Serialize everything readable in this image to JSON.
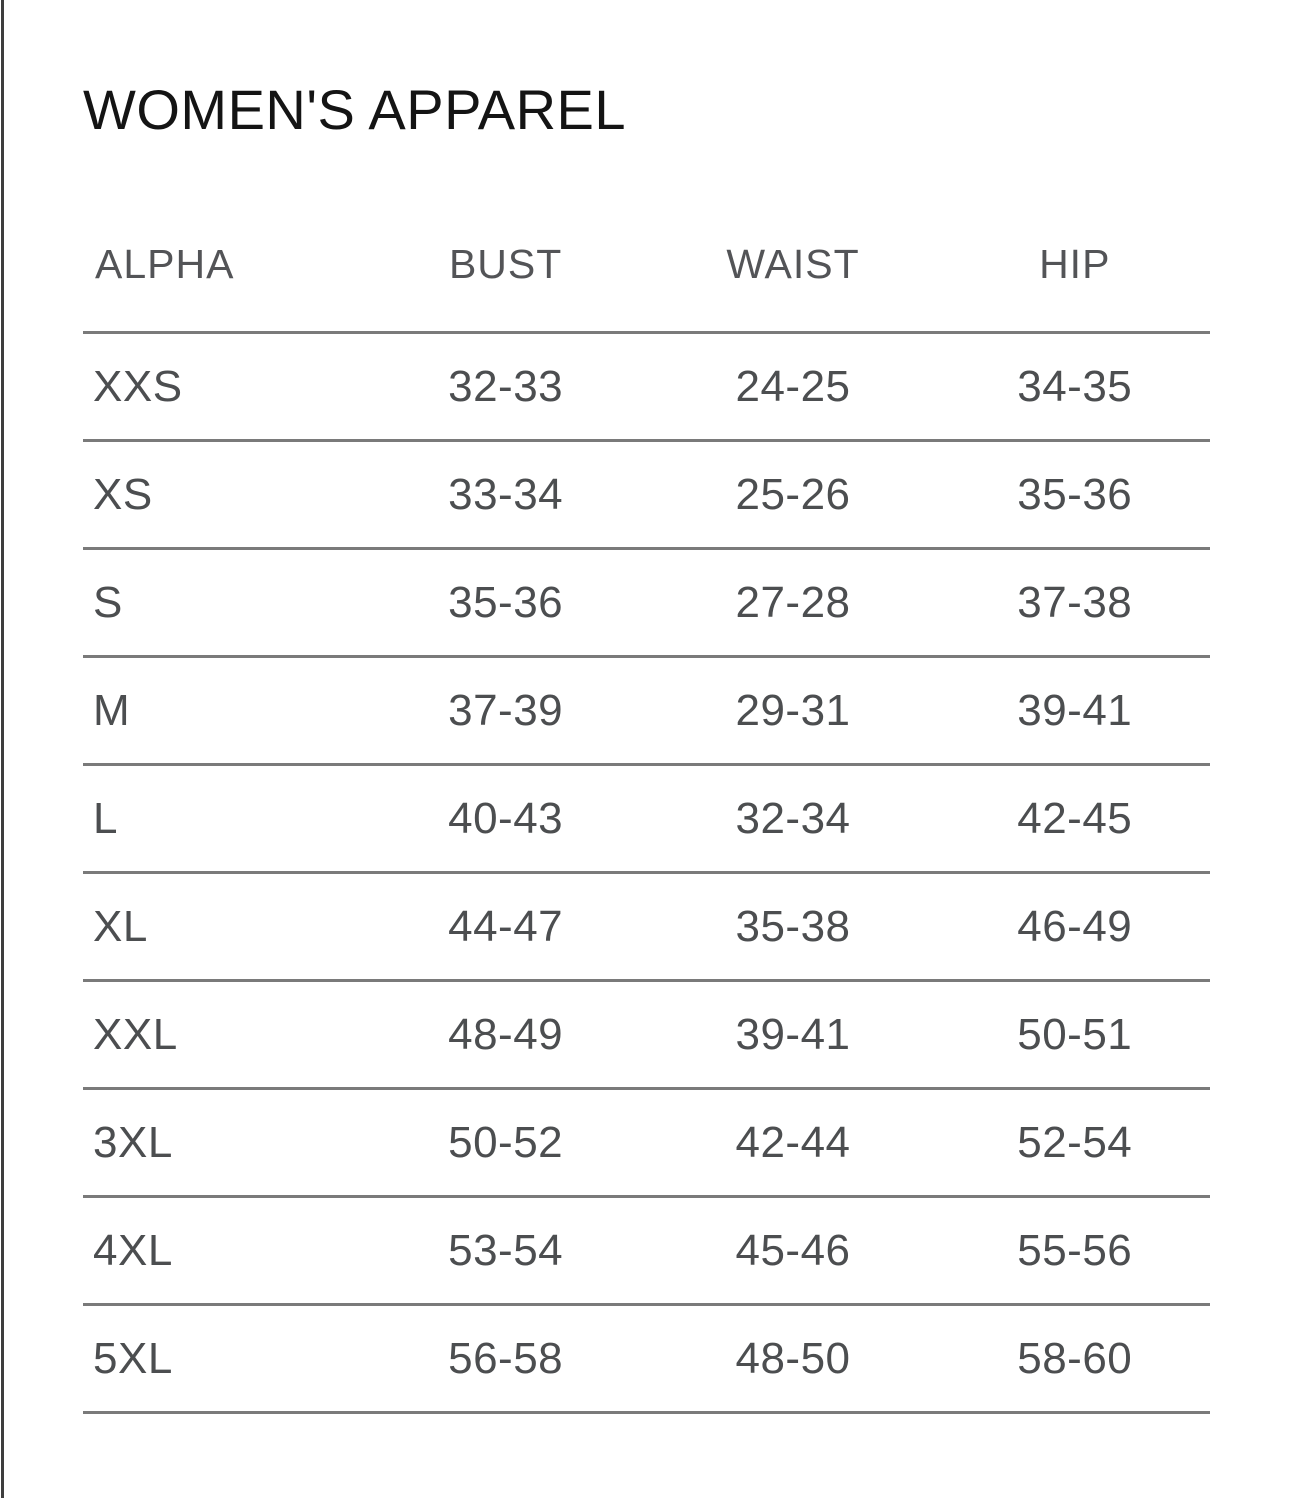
{
  "page": {
    "title": "WOMEN'S APPAREL"
  },
  "table": {
    "columns": [
      "ALPHA",
      "BUST",
      "WAIST",
      "HIP"
    ],
    "rows": [
      {
        "alpha": "XXS",
        "bust": "32-33",
        "waist": "24-25",
        "hip": "34-35"
      },
      {
        "alpha": "XS",
        "bust": "33-34",
        "waist": "25-26",
        "hip": "35-36"
      },
      {
        "alpha": "S",
        "bust": "35-36",
        "waist": "27-28",
        "hip": "37-38"
      },
      {
        "alpha": "M",
        "bust": "37-39",
        "waist": "29-31",
        "hip": "39-41"
      },
      {
        "alpha": "L",
        "bust": "40-43",
        "waist": "32-34",
        "hip": "42-45"
      },
      {
        "alpha": "XL",
        "bust": "44-47",
        "waist": "35-38",
        "hip": "46-49"
      },
      {
        "alpha": "XXL",
        "bust": "48-49",
        "waist": "39-41",
        "hip": "50-51"
      },
      {
        "alpha": "3XL",
        "bust": "50-52",
        "waist": "42-44",
        "hip": "52-54"
      },
      {
        "alpha": "4XL",
        "bust": "53-54",
        "waist": "45-46",
        "hip": "55-56"
      },
      {
        "alpha": "5XL",
        "bust": "56-58",
        "waist": "48-50",
        "hip": "58-60"
      }
    ]
  },
  "colors": {
    "background": "#ffffff",
    "title_text": "#141414",
    "header_text": "#535457",
    "data_text": "#4c4e50",
    "rule_line": "#7a7a7a",
    "left_edge_line": "#3e3e3e"
  }
}
